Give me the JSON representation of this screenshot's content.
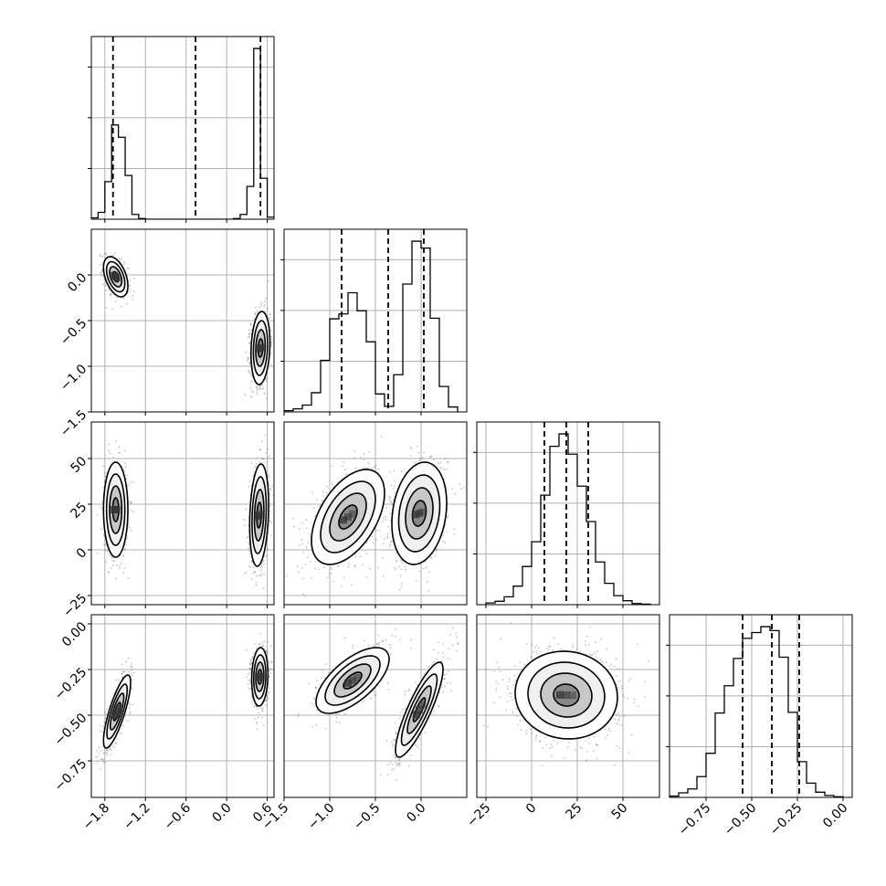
{
  "chart_data": {
    "type": "corner",
    "title": "",
    "parameters": [
      {
        "id": "p0",
        "range": [
          -2.0,
          0.7
        ],
        "ticks": [
          -1.8,
          -1.2,
          -0.6,
          0.0,
          0.6
        ],
        "tick_labels": [
          "−1.8",
          "−1.2",
          "−0.6",
          "0.0",
          "0.6"
        ]
      },
      {
        "id": "p1",
        "range": [
          -1.5,
          0.5
        ],
        "ticks": [
          -1.5,
          -1.0,
          -0.5,
          0.0
        ],
        "tick_labels": [
          "−1.5",
          "−1.0",
          "−0.5",
          "0.0"
        ]
      },
      {
        "id": "p2",
        "range": [
          -30,
          70
        ],
        "ticks": [
          -25,
          0,
          25,
          50
        ],
        "tick_labels": [
          "−25",
          "0",
          "25",
          "50"
        ]
      },
      {
        "id": "p3",
        "range": [
          -0.95,
          0.05
        ],
        "ticks": [
          -0.75,
          -0.5,
          -0.25,
          0.0
        ],
        "tick_labels": [
          "−0.75",
          "−0.50",
          "−0.25",
          "0.00"
        ]
      }
    ],
    "histograms": [
      {
        "param": "p0",
        "edges": [
          -2.0,
          -1.9,
          -1.8,
          -1.7,
          -1.6,
          -1.5,
          -1.4,
          -1.3,
          -1.2,
          -1.1,
          -1.0,
          -0.9,
          -0.8,
          -0.7,
          -0.6,
          -0.5,
          -0.4,
          -0.3,
          -0.2,
          -0.1,
          0.0,
          0.1,
          0.2,
          0.3,
          0.4,
          0.5,
          0.6,
          0.7
        ],
        "counts": [
          2,
          10,
          55,
          138,
          120,
          64,
          7,
          1,
          0,
          0,
          0,
          0,
          0,
          0,
          0,
          0,
          0,
          0,
          0,
          0,
          0,
          1,
          7,
          48,
          250,
          60,
          3
        ],
        "quantiles": [
          -1.68,
          -0.46,
          0.5
        ]
      },
      {
        "param": "p1",
        "edges": [
          -1.5,
          -1.4,
          -1.3,
          -1.2,
          -1.1,
          -1.0,
          -0.9,
          -0.8,
          -0.7,
          -0.6,
          -0.5,
          -0.4,
          -0.3,
          -0.2,
          -0.1,
          0.0,
          0.1,
          0.2,
          0.3,
          0.4
        ],
        "counts": [
          2,
          5,
          11,
          31,
          83,
          150,
          158,
          192,
          163,
          113,
          29,
          9,
          60,
          206,
          275,
          264,
          151,
          41,
          8
        ],
        "quantiles": [
          -0.87,
          -0.36,
          0.03
        ]
      },
      {
        "param": "p2",
        "edges": [
          -25,
          -20,
          -15,
          -10,
          -5,
          0,
          5,
          10,
          15,
          20,
          25,
          30,
          35,
          40,
          45,
          50,
          55,
          60,
          65
        ],
        "counts": [
          3,
          6,
          14,
          33,
          68,
          112,
          195,
          282,
          304,
          268,
          211,
          148,
          76,
          38,
          16,
          7,
          2,
          1
        ],
        "quantiles": [
          7,
          19,
          31
        ]
      },
      {
        "param": "p3",
        "edges": [
          -0.95,
          -0.9,
          -0.85,
          -0.8,
          -0.75,
          -0.7,
          -0.65,
          -0.6,
          -0.55,
          -0.5,
          -0.45,
          -0.4,
          -0.35,
          -0.3,
          -0.25,
          -0.2,
          -0.15,
          -0.1,
          -0.05,
          0.0
        ],
        "counts": [
          2,
          7,
          13,
          32,
          68,
          130,
          172,
          214,
          245,
          254,
          263,
          257,
          216,
          131,
          55,
          22,
          8,
          3,
          1
        ],
        "quantiles": [
          -0.55,
          -0.39,
          -0.24
        ]
      }
    ],
    "pairs": [
      {
        "x": "p0",
        "y": "p1",
        "modes": [
          {
            "mean": [
              -1.64,
              -0.02
            ],
            "sd": [
              0.09,
              0.11
            ],
            "rho": -0.45,
            "weight": 0.45
          },
          {
            "mean": [
              0.5,
              -0.8
            ],
            "sd": [
              0.07,
              0.2
            ],
            "rho": 0.15,
            "weight": 0.55
          }
        ]
      },
      {
        "x": "p0",
        "y": "p2",
        "modes": [
          {
            "mean": [
              -1.64,
              22
            ],
            "sd": [
              0.09,
              13
            ],
            "rho": 0.0,
            "weight": 0.45
          },
          {
            "mean": [
              0.48,
              19
            ],
            "sd": [
              0.07,
              14
            ],
            "rho": 0.2,
            "weight": 0.55
          }
        ]
      },
      {
        "x": "p0",
        "y": "p3",
        "modes": [
          {
            "mean": [
              -1.62,
              -0.48
            ],
            "sd": [
              0.1,
              0.1
            ],
            "rho": 0.8,
            "weight": 0.45
          },
          {
            "mean": [
              0.49,
              -0.29
            ],
            "sd": [
              0.06,
              0.08
            ],
            "rho": 0.1,
            "weight": 0.55
          }
        ]
      },
      {
        "x": "p1",
        "y": "p2",
        "modes": [
          {
            "mean": [
              -0.8,
              18
            ],
            "sd": [
              0.2,
              13
            ],
            "rho": 0.5,
            "weight": 0.45
          },
          {
            "mean": [
              -0.02,
              20
            ],
            "sd": [
              0.15,
              14
            ],
            "rho": 0.2,
            "weight": 0.55
          }
        ]
      },
      {
        "x": "p1",
        "y": "p3",
        "modes": [
          {
            "mean": [
              -0.75,
              -0.31
            ],
            "sd": [
              0.2,
              0.09
            ],
            "rho": 0.65,
            "weight": 0.45
          },
          {
            "mean": [
              -0.02,
              -0.47
            ],
            "sd": [
              0.13,
              0.13
            ],
            "rho": 0.85,
            "weight": 0.55
          }
        ]
      },
      {
        "x": "p2",
        "y": "p3",
        "modes": [
          {
            "mean": [
              19,
              -0.39
            ],
            "sd": [
              14,
              0.12
            ],
            "rho": -0.05,
            "weight": 1.0
          }
        ]
      }
    ],
    "contour_levels": [
      0.5,
      1.0,
      1.5,
      2.0
    ],
    "colors": {
      "line": "#000000",
      "grid": "#b0b0b0",
      "points": "#555555",
      "fill": "#888888"
    },
    "grid": true,
    "legend": "none"
  }
}
